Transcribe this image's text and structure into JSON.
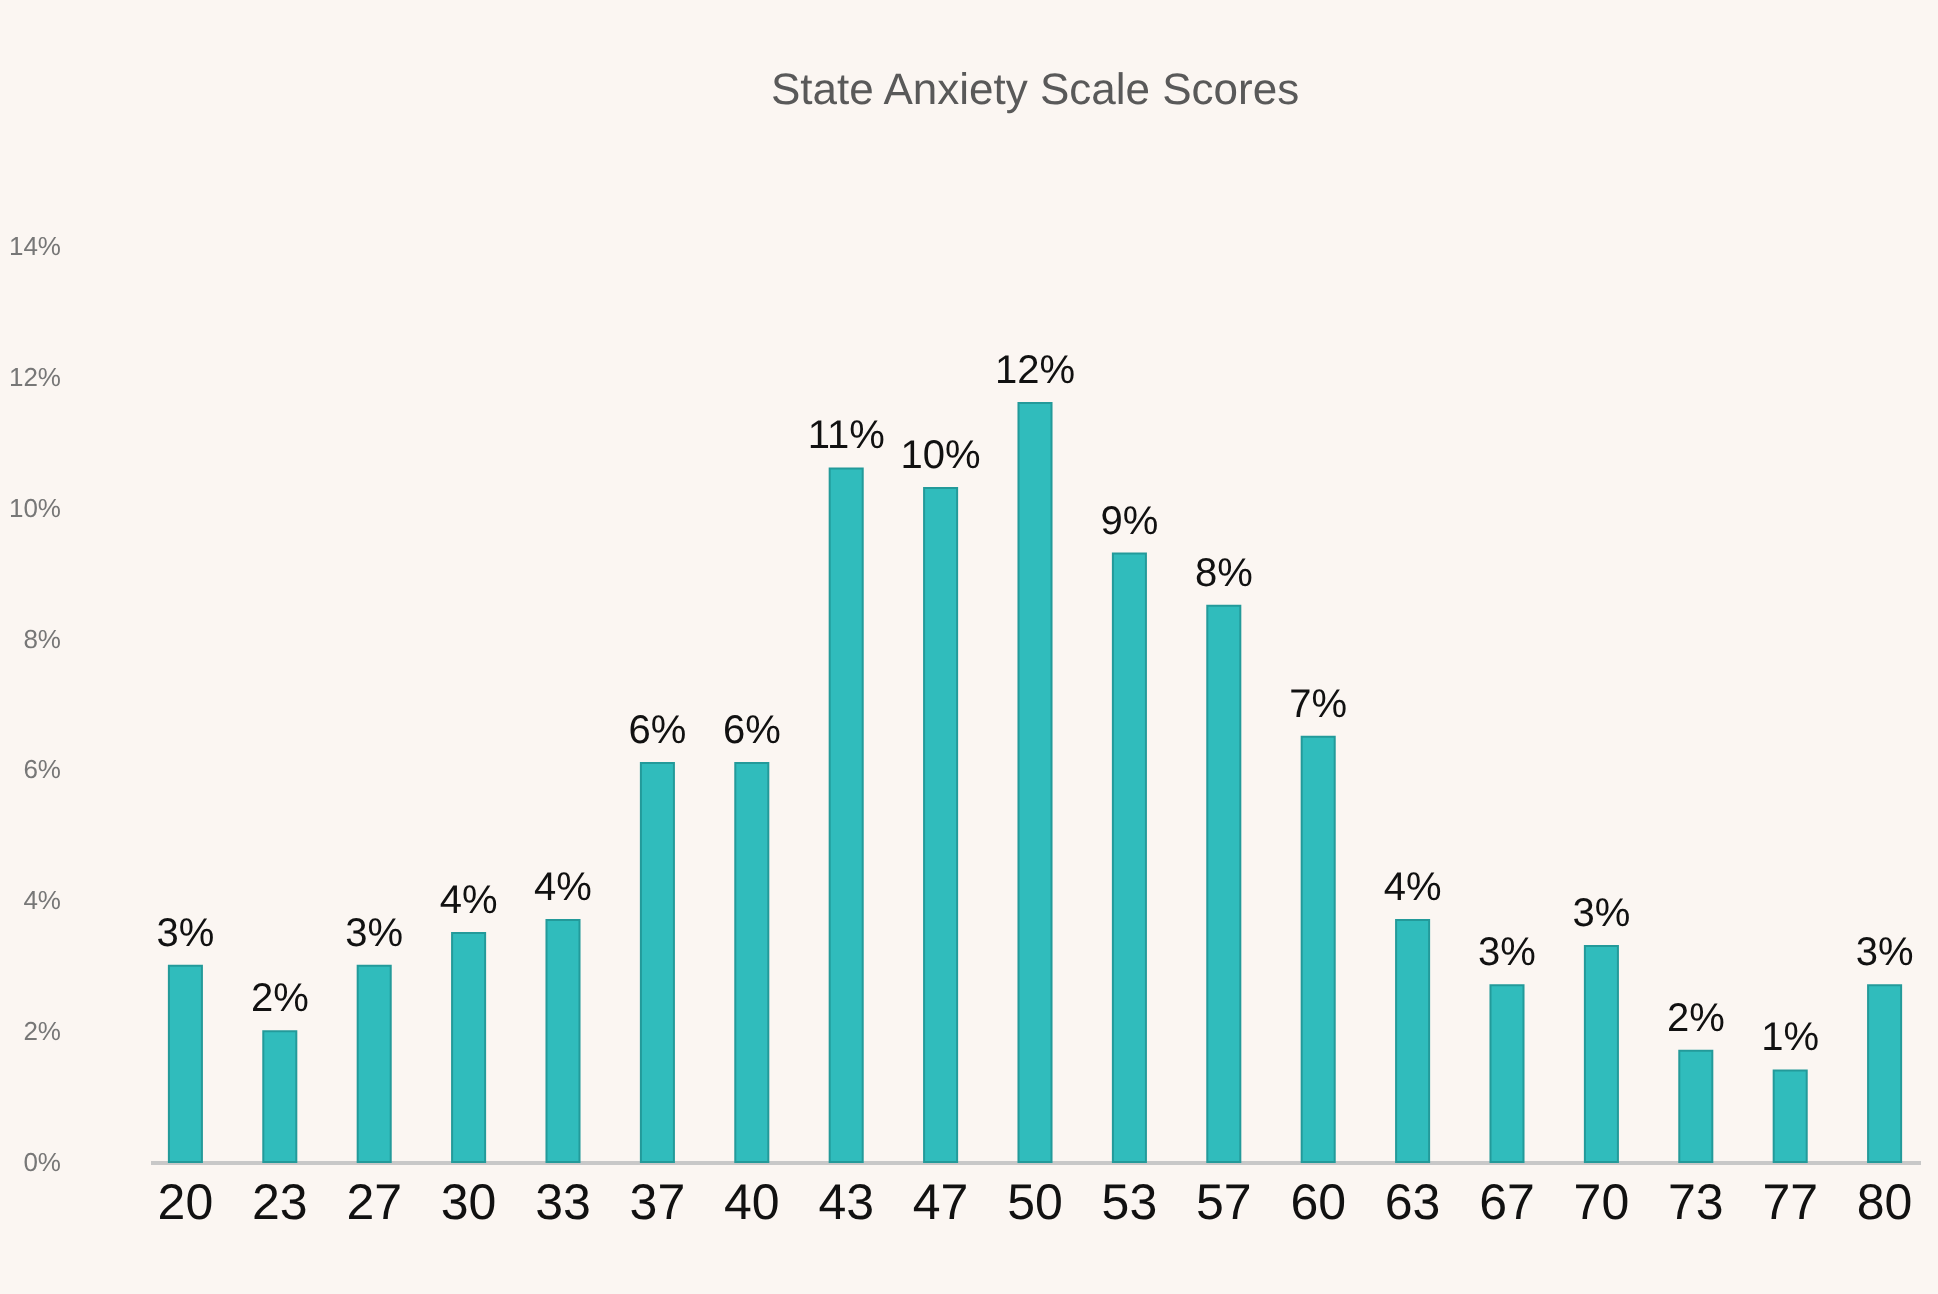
{
  "chart_data": {
    "type": "bar",
    "title": "State Anxiety Scale Scores",
    "categories": [
      "20",
      "23",
      "27",
      "30",
      "33",
      "37",
      "40",
      "43",
      "47",
      "50",
      "53",
      "57",
      "60",
      "63",
      "67",
      "70",
      "73",
      "77",
      "80"
    ],
    "values": [
      3.0,
      2.0,
      3.0,
      3.5,
      3.7,
      6.1,
      6.1,
      10.6,
      10.3,
      11.6,
      9.3,
      8.5,
      6.5,
      3.7,
      2.7,
      3.3,
      1.7,
      1.4,
      2.7
    ],
    "value_labels": [
      "3%",
      "2%",
      "3%",
      "4%",
      "4%",
      "6%",
      "6%",
      "11%",
      "10%",
      "12%",
      "9%",
      "8%",
      "7%",
      "4%",
      "3%",
      "3%",
      "2%",
      "1%",
      "3%"
    ],
    "color": "#30bcbc",
    "ylim": [
      0,
      14
    ],
    "yticks": [
      {
        "value": 0,
        "label": "0%"
      },
      {
        "value": 2,
        "label": "2%"
      },
      {
        "value": 4,
        "label": "4%"
      },
      {
        "value": 6,
        "label": "6%"
      },
      {
        "value": 8,
        "label": "8%"
      },
      {
        "value": 10,
        "label": "10%"
      },
      {
        "value": 12,
        "label": "12%"
      },
      {
        "value": 14,
        "label": "14%"
      }
    ],
    "grid": false
  }
}
